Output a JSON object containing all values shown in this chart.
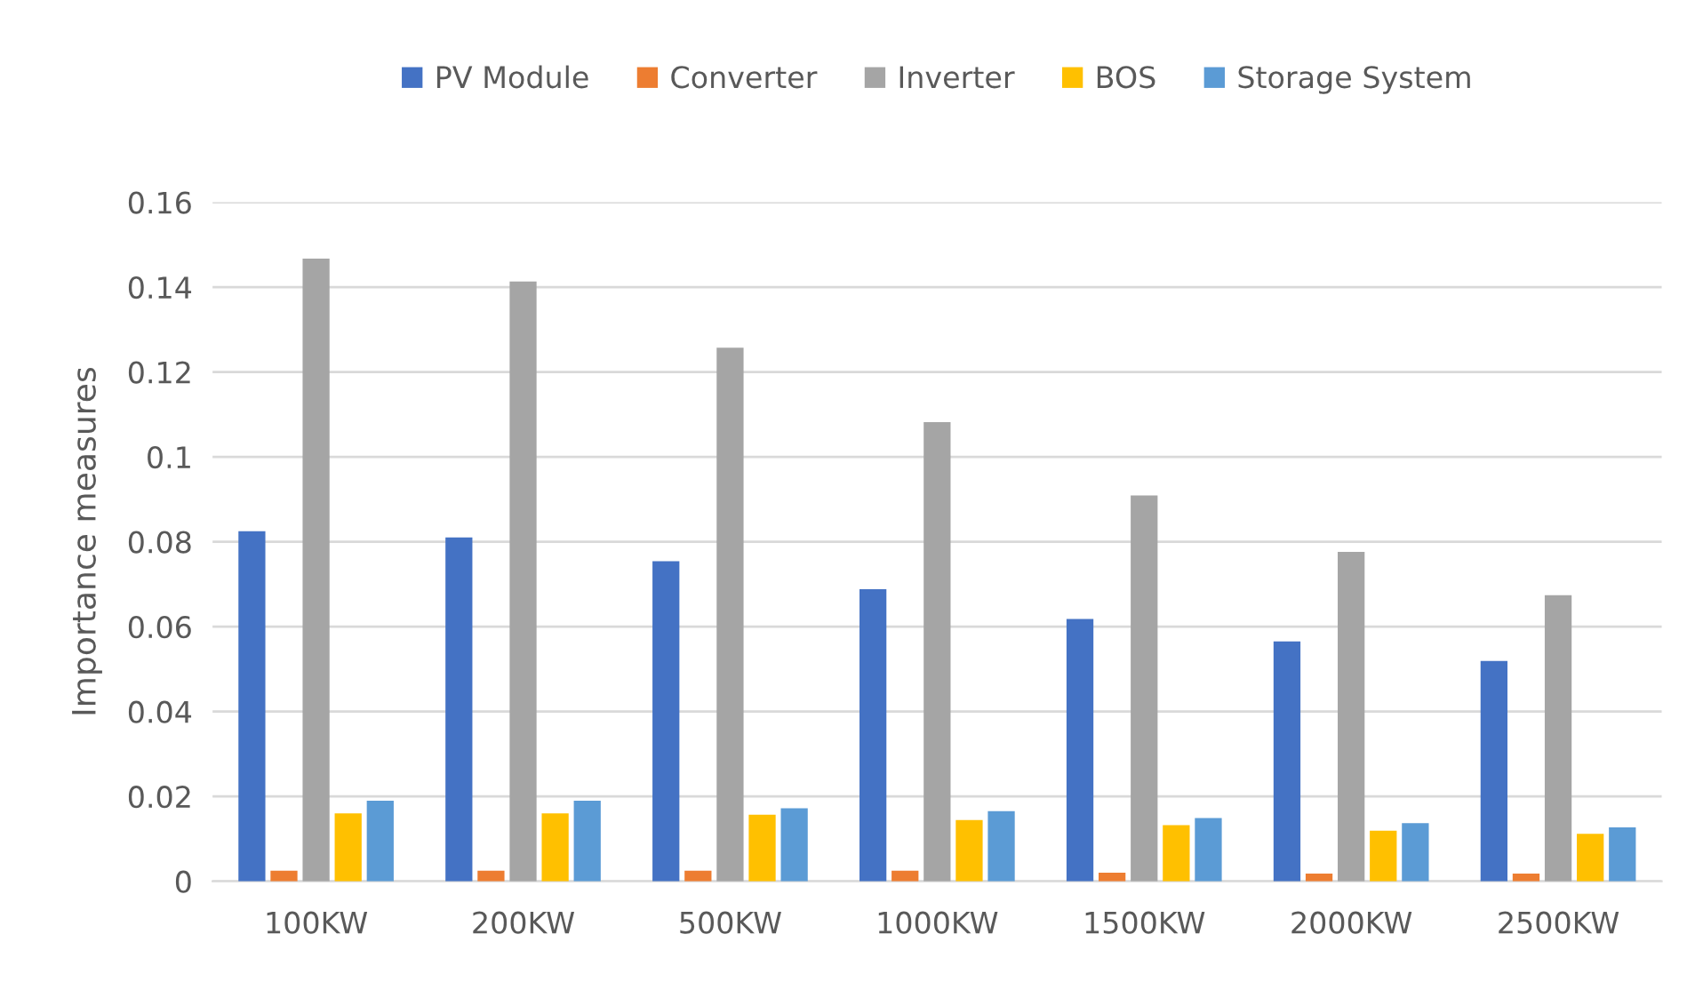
{
  "chart_data": {
    "type": "bar",
    "ylabel": "Importance measures",
    "categories": [
      "100KW",
      "200KW",
      "500KW",
      "1000KW",
      "1500KW",
      "2000KW",
      "2500KW"
    ],
    "series": [
      {
        "name": "PV Module",
        "color": "#4472c4",
        "values": [
          0.0825,
          0.081,
          0.0754,
          0.0688,
          0.0618,
          0.0565,
          0.0519
        ]
      },
      {
        "name": "Converter",
        "color": "#ed7d31",
        "values": [
          0.0025,
          0.0025,
          0.0025,
          0.0025,
          0.002,
          0.0018,
          0.0018
        ]
      },
      {
        "name": "Inverter",
        "color": "#a5a5a5",
        "values": [
          0.1467,
          0.1413,
          0.1257,
          0.1082,
          0.0909,
          0.0776,
          0.0674
        ]
      },
      {
        "name": "BOS",
        "color": "#ffc000",
        "values": [
          0.016,
          0.016,
          0.0157,
          0.0144,
          0.0132,
          0.0119,
          0.0112
        ]
      },
      {
        "name": "Storage System",
        "color": "#5b9bd5",
        "values": [
          0.019,
          0.019,
          0.0172,
          0.0165,
          0.0149,
          0.0137,
          0.0127
        ]
      }
    ],
    "ylim": [
      0,
      0.16
    ],
    "yticks": [
      0,
      0.02,
      0.04,
      0.06,
      0.08,
      0.1,
      0.12,
      0.14,
      0.16
    ],
    "grid": "y",
    "legend": "top"
  }
}
